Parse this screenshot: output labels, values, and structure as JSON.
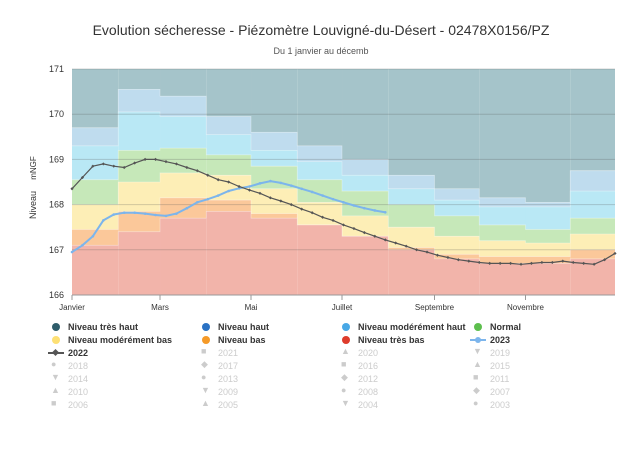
{
  "chart_data": {
    "type": "area",
    "title": "Evolution sécheresse - Piézomètre Louvigné-du-Désert - 02478X0156/PZ",
    "subtitle": "Du 1 janvier au décemb",
    "ylabel": "Niveau",
    "yunit": "mNGF",
    "ylim": [
      166,
      171
    ],
    "yticks": [
      166,
      167,
      168,
      169,
      170,
      171
    ],
    "xlim": [
      1,
      365
    ],
    "xticks": [
      {
        "label": "Janvier",
        "day": 1
      },
      {
        "label": "Mars",
        "day": 60
      },
      {
        "label": "Mai",
        "day": 121
      },
      {
        "label": "Juillet",
        "day": 182
      },
      {
        "label": "Septembre",
        "day": 244
      },
      {
        "label": "Novembre",
        "day": 305
      }
    ],
    "grid": true,
    "legend_position": "bottom",
    "bands": {
      "month_starts": [
        1,
        32,
        60,
        91,
        121,
        152,
        182,
        213,
        244,
        274,
        305,
        335,
        365
      ],
      "levels": [
        {
          "name": "Niveau très haut",
          "color": "#a5c4ca",
          "upper": [
            171,
            171,
            171,
            171,
            171,
            171,
            171,
            171,
            171,
            171,
            171,
            171
          ]
        },
        {
          "name": "Niveau haut",
          "color": "#bfdcee",
          "upper": [
            169.7,
            170.55,
            170.4,
            169.95,
            169.6,
            169.3,
            169.0,
            168.65,
            168.35,
            168.15,
            168.05,
            168.75
          ]
        },
        {
          "name": "Niveau modérément haut",
          "color": "#b9e8f5",
          "upper": [
            169.3,
            170.05,
            169.95,
            169.55,
            169.2,
            168.95,
            168.65,
            168.35,
            168.1,
            167.95,
            167.95,
            168.3
          ]
        },
        {
          "name": "Normal",
          "color": "#c6e8b9",
          "upper": [
            168.55,
            169.2,
            169.25,
            169.1,
            168.85,
            168.55,
            168.3,
            168.0,
            167.75,
            167.55,
            167.45,
            167.7
          ]
        },
        {
          "name": "Niveau modérément bas",
          "color": "#fdeeb6",
          "upper": [
            168.0,
            168.5,
            168.7,
            168.65,
            168.35,
            168.05,
            167.75,
            167.5,
            167.3,
            167.2,
            167.15,
            167.35
          ]
        },
        {
          "name": "Niveau bas",
          "color": "#fbc89a",
          "upper": [
            167.45,
            167.85,
            168.15,
            168.1,
            167.8,
            167.55,
            167.3,
            167.05,
            166.9,
            166.85,
            166.85,
            167.0
          ]
        },
        {
          "name": "Niveau très bas",
          "color": "#f2b4aa",
          "upper": [
            167.1,
            167.4,
            167.7,
            167.85,
            167.7,
            167.55,
            167.3,
            167.0,
            166.8,
            166.7,
            166.7,
            166.8
          ]
        }
      ],
      "floor": 166
    },
    "series": [
      {
        "name": "2023",
        "color": "#7cb5ec",
        "x": [
          1,
          8,
          15,
          22,
          29,
          36,
          43,
          50,
          57,
          64,
          71,
          78,
          85,
          92,
          99,
          106,
          113,
          120,
          127,
          134,
          141,
          148,
          155,
          162,
          169,
          176,
          183,
          190,
          197,
          204,
          211
        ],
        "y": [
          166.95,
          167.1,
          167.3,
          167.65,
          167.78,
          167.82,
          167.82,
          167.8,
          167.77,
          167.75,
          167.8,
          167.92,
          168.05,
          168.12,
          168.2,
          168.3,
          168.36,
          168.4,
          168.47,
          168.52,
          168.48,
          168.42,
          168.35,
          168.28,
          168.2,
          168.12,
          168.05,
          167.98,
          167.92,
          167.87,
          167.83
        ]
      },
      {
        "name": "2022",
        "color": "#555555",
        "x": [
          1,
          8,
          15,
          22,
          29,
          36,
          43,
          50,
          57,
          64,
          71,
          78,
          85,
          92,
          99,
          106,
          113,
          120,
          127,
          134,
          141,
          148,
          155,
          162,
          169,
          176,
          183,
          190,
          197,
          204,
          211,
          218,
          225,
          232,
          239,
          246,
          253,
          260,
          267,
          274,
          281,
          288,
          295,
          302,
          309,
          316,
          323,
          330,
          337,
          344,
          351,
          358,
          365
        ],
        "y": [
          168.35,
          168.6,
          168.85,
          168.9,
          168.85,
          168.82,
          168.92,
          169.0,
          169.0,
          168.95,
          168.9,
          168.82,
          168.75,
          168.65,
          168.55,
          168.5,
          168.4,
          168.32,
          168.25,
          168.15,
          168.08,
          168.0,
          167.9,
          167.82,
          167.72,
          167.65,
          167.55,
          167.47,
          167.38,
          167.3,
          167.22,
          167.15,
          167.08,
          167.0,
          166.95,
          166.88,
          166.83,
          166.78,
          166.75,
          166.72,
          166.7,
          166.7,
          166.7,
          166.68,
          166.7,
          166.72,
          166.72,
          166.75,
          166.72,
          166.7,
          166.68,
          166.78,
          166.92
        ]
      }
    ]
  },
  "legend": {
    "levels": [
      {
        "label": "Niveau très haut",
        "color": "#2f5d6b"
      },
      {
        "label": "Niveau haut",
        "color": "#2a72c4"
      },
      {
        "label": "Niveau modérément haut",
        "color": "#48a8e6"
      },
      {
        "label": "Normal",
        "color": "#5dbf4e"
      },
      {
        "label": "Niveau modérément bas",
        "color": "#fde074"
      },
      {
        "label": "Niveau bas",
        "color": "#f59a28"
      },
      {
        "label": "Niveau très bas",
        "color": "#de3c2c"
      }
    ],
    "active_years": [
      {
        "label": "2023",
        "color": "#7cb5ec",
        "marker": "circle"
      },
      {
        "label": "2022",
        "color": "#555555",
        "marker": "diamond"
      }
    ],
    "inactive_years": [
      {
        "label": "2021",
        "glyph": "■"
      },
      {
        "label": "2020",
        "glyph": "▲"
      },
      {
        "label": "2019",
        "glyph": "▼"
      },
      {
        "label": "2018",
        "glyph": "●"
      },
      {
        "label": "2017",
        "glyph": "◆"
      },
      {
        "label": "2016",
        "glyph": "■"
      },
      {
        "label": "2015",
        "glyph": "▲"
      },
      {
        "label": "2014",
        "glyph": "▼"
      },
      {
        "label": "2013",
        "glyph": "●"
      },
      {
        "label": "2012",
        "glyph": "◆"
      },
      {
        "label": "2011",
        "glyph": "■"
      },
      {
        "label": "2010",
        "glyph": "▲"
      },
      {
        "label": "2009",
        "glyph": "▼"
      },
      {
        "label": "2008",
        "glyph": "●"
      },
      {
        "label": "2007",
        "glyph": "◆"
      },
      {
        "label": "2006",
        "glyph": "■"
      },
      {
        "label": "2005",
        "glyph": "▲"
      },
      {
        "label": "2004",
        "glyph": "▼"
      },
      {
        "label": "2003",
        "glyph": "●"
      }
    ]
  }
}
